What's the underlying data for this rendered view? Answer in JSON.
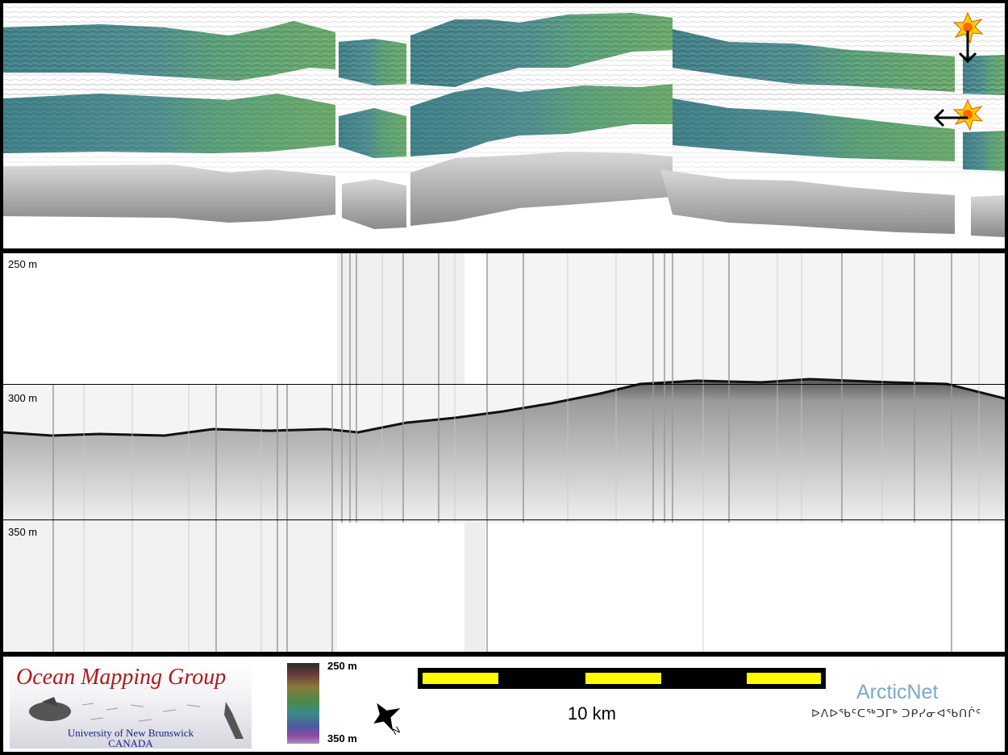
{
  "echogram": {
    "depth_labels": [
      "250 m",
      "300 m",
      "350 m"
    ]
  },
  "logos": {
    "ocean_mapping_group": {
      "title": "Ocean Mapping Group",
      "university": "University of New Brunswick",
      "country": "CANADA"
    },
    "arcticnet": {
      "name": "ArcticNet",
      "subtitle": "ᐅᐱᐅᖃᑦᑕᖅᑐᒥᒃ ᑐᑭᓯᓂᐊᖃᑎᒌᑦ"
    }
  },
  "colorbar": {
    "top_label": "250 m",
    "bottom_label": "350 m"
  },
  "scale_bar": {
    "label": "10 km",
    "colors": [
      "#000000",
      "#ffff00"
    ]
  },
  "north_arrow": {
    "letter": "N",
    "icon": "north-arrow-icon"
  },
  "markers": [
    {
      "icon": "starburst-icon",
      "arrow": "down-arrow-icon"
    },
    {
      "icon": "starburst-icon",
      "arrow": "left-arrow-icon"
    }
  ],
  "colors": {
    "background": "#000000",
    "swath_teal": "#4a8a8a",
    "swath_green": "#5aa06a",
    "starburst": "#ffcc00"
  }
}
